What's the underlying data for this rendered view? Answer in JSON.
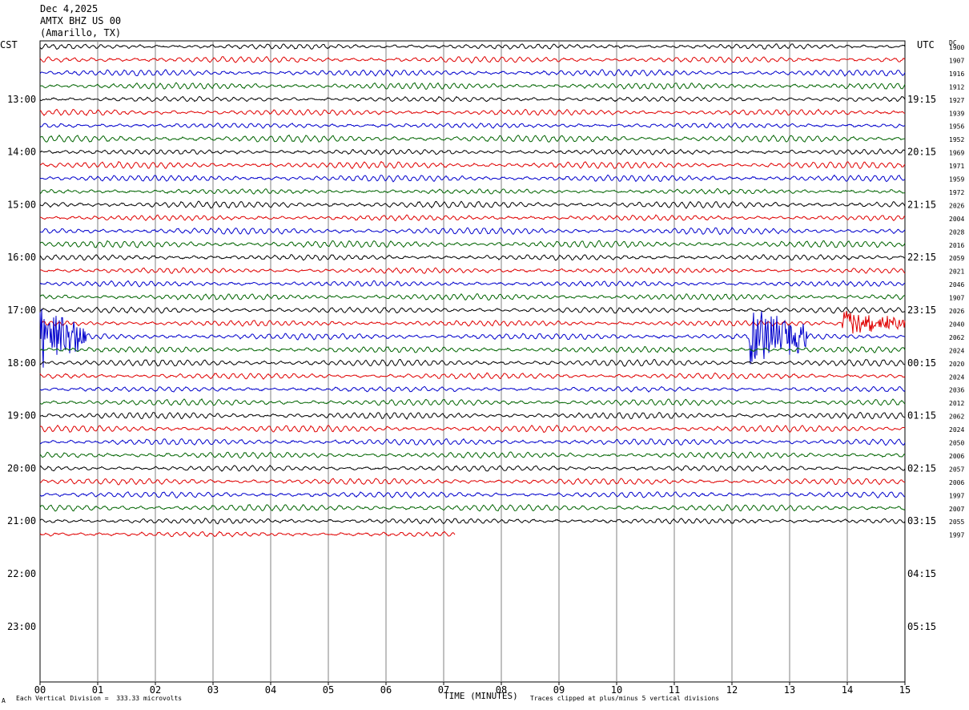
{
  "header": {
    "date": "Dec 4,2025",
    "station": "AMTX BHZ US 00",
    "location": "(Amarillo, TX)"
  },
  "left_timezone": "CST",
  "right_timezone": "UTC",
  "dc_label": "DC",
  "footer": {
    "scale_note": "Each Vertical Division =  333.33 microvolts",
    "axis_title": "TIME (MINUTES)",
    "clip_note": "Traces clipped at plus/minus 5 vertical divisions",
    "corner_mark": "A"
  },
  "colors": {
    "trace_cycle": [
      "#000000",
      "#e00000",
      "#0000cc",
      "#006400"
    ],
    "grid": "#808080"
  },
  "chart_data": {
    "type": "line",
    "title": "AMTX BHZ US 00 (Amarillo, TX)",
    "xlabel": "TIME (MINUTES)",
    "x_ticks": [
      "00",
      "01",
      "02",
      "03",
      "04",
      "05",
      "06",
      "07",
      "08",
      "09",
      "10",
      "11",
      "12",
      "13",
      "14",
      "15"
    ],
    "xlim": [
      0,
      15
    ],
    "minutes_per_trace": 15,
    "total_rows": 48,
    "traces_recorded": 38,
    "last_trace_end_minute": 7.2,
    "left_hour_labels": [
      "13:00",
      "14:00",
      "15:00",
      "16:00",
      "17:00",
      "18:00",
      "19:00",
      "20:00",
      "21:00",
      "22:00",
      "23:00"
    ],
    "right_hour_labels": [
      "19:15",
      "20:15",
      "21:15",
      "22:15",
      "23:15",
      "00:15",
      "01:15",
      "02:15",
      "03:15",
      "04:15",
      "05:15"
    ],
    "dc_offsets": [
      "1900",
      "1907",
      "1916",
      "1912",
      "1927",
      "1939",
      "1956",
      "1952",
      "1969",
      "1971",
      "1959",
      "1972",
      "2026",
      "2004",
      "2028",
      "2016",
      "2059",
      "2021",
      "2046",
      "1907",
      "2026",
      "2040",
      "2062",
      "2024",
      "2020",
      "2024",
      "2036",
      "2012",
      "2062",
      "2024",
      "2050",
      "2006",
      "2057",
      "2006",
      "1997",
      "2007",
      "2055",
      "1997"
    ],
    "events": [
      {
        "row": 22,
        "start_minute": 0.0,
        "end_minute": 0.8,
        "max_amplitude": 5
      },
      {
        "row": 22,
        "start_minute": 12.3,
        "end_minute": 13.3,
        "max_amplitude": 5
      },
      {
        "row": 21,
        "start_minute": 13.9,
        "end_minute": 15.0,
        "max_amplitude": 2
      }
    ]
  }
}
